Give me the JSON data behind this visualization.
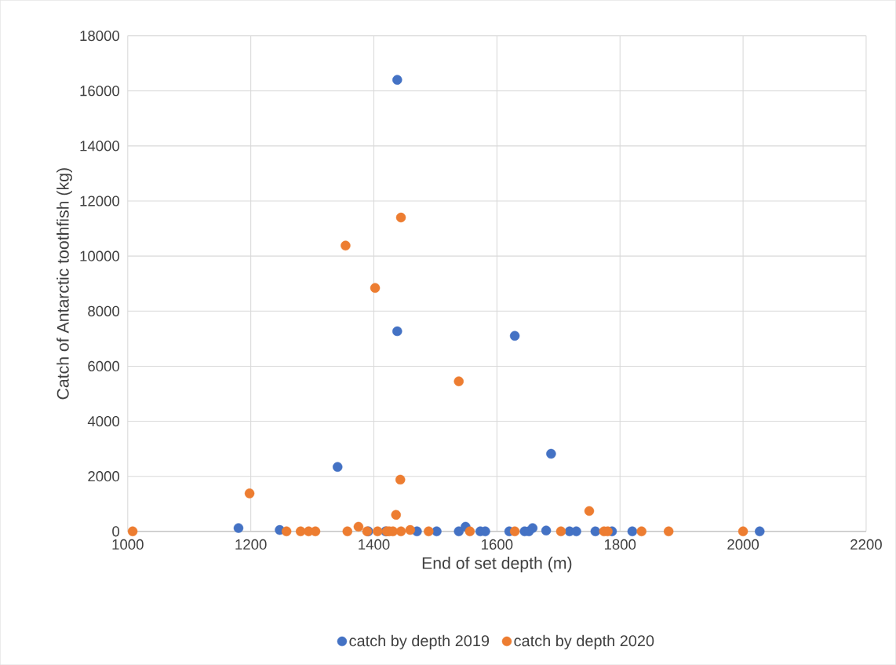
{
  "chart_data": {
    "type": "scatter",
    "xlabel": "End of set depth (m)",
    "ylabel": "Catch of Antarctic toothfish (kg)",
    "xlim": [
      1000,
      2200
    ],
    "xticks": [
      1000,
      1200,
      1400,
      1600,
      1800,
      2000,
      2200
    ],
    "ylim": [
      0,
      18000
    ],
    "yticks": [
      0,
      2000,
      4000,
      6000,
      8000,
      10000,
      12000,
      14000,
      16000,
      18000
    ],
    "grid": true,
    "legend": "bottom",
    "marker": "circle",
    "series": [
      {
        "name": "catch by depth 2019",
        "color": "#4472c4",
        "x": [
          1180,
          1247,
          1341,
          1391,
          1419,
          1438,
          1438,
          1470,
          1502,
          1538,
          1549,
          1573,
          1581,
          1620,
          1629,
          1645,
          1652,
          1658,
          1680,
          1688,
          1718,
          1729,
          1760,
          1787,
          1820,
          2027
        ],
        "values": [
          120,
          50,
          2340,
          0,
          0,
          16400,
          7270,
          0,
          0,
          0,
          170,
          0,
          0,
          0,
          7100,
          0,
          0,
          120,
          30,
          2820,
          0,
          0,
          0,
          0,
          0,
          0
        ]
      },
      {
        "name": "catch by depth 2020",
        "color": "#ed7d31",
        "x": [
          1008,
          1198,
          1258,
          1281,
          1294,
          1305,
          1354,
          1357,
          1375,
          1389,
          1402,
          1406,
          1421,
          1425,
          1431,
          1436,
          1443,
          1444,
          1444,
          1459,
          1489,
          1538,
          1556,
          1629,
          1704,
          1750,
          1774,
          1780,
          1835,
          1879,
          2000
        ],
        "values": [
          0,
          1380,
          0,
          0,
          0,
          0,
          10380,
          0,
          170,
          0,
          8840,
          0,
          0,
          0,
          0,
          600,
          1880,
          11400,
          0,
          50,
          0,
          5450,
          0,
          0,
          0,
          740,
          0,
          0,
          0,
          0,
          0
        ]
      }
    ]
  }
}
